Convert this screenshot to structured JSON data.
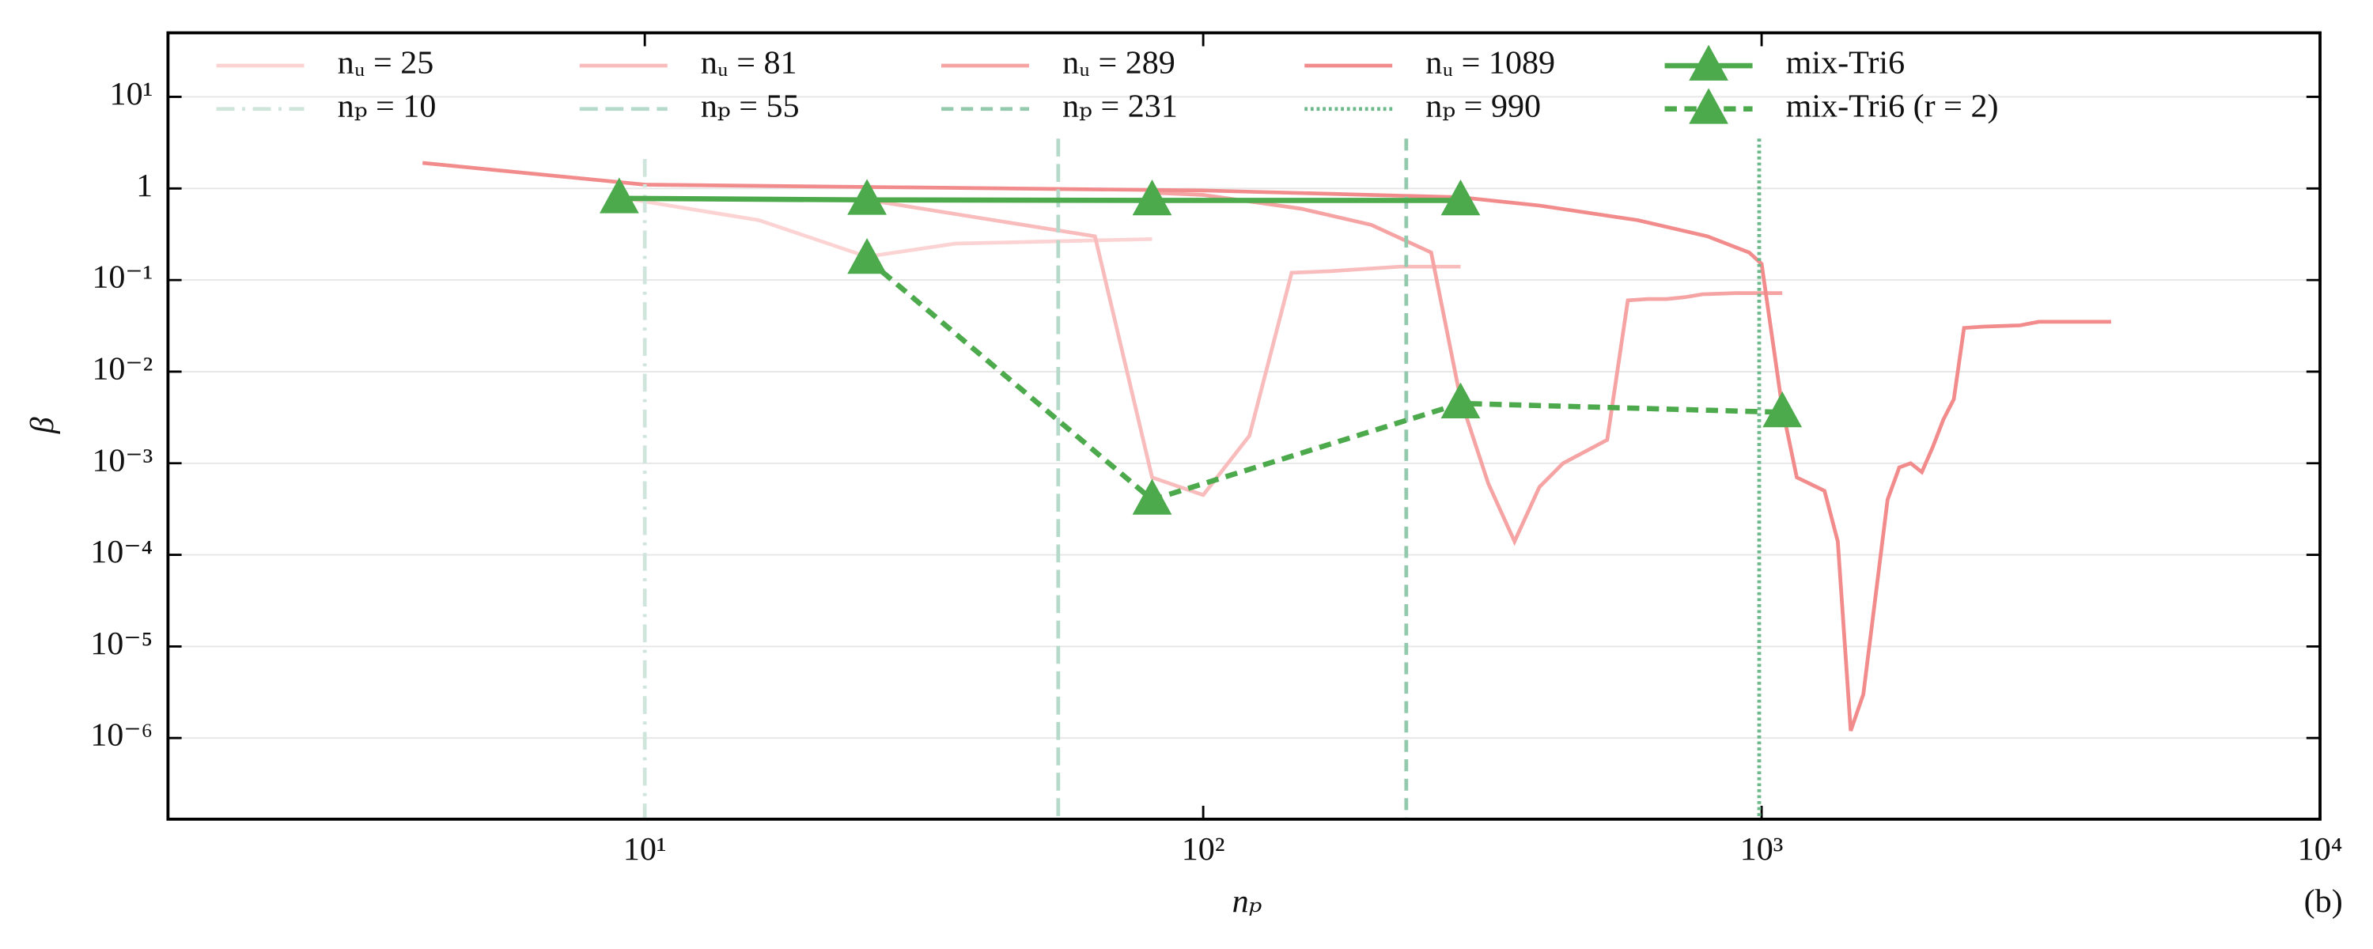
{
  "chart_data": {
    "type": "line",
    "xlabel": "nₚ",
    "ylabel": "β",
    "annotation": "(b)",
    "xscale": "log",
    "yscale": "log",
    "grid": true,
    "legend": "upper left",
    "xlim": [
      1.4,
      10000
    ],
    "ylim": [
      1.3e-07,
      50
    ],
    "xticks": [
      {
        "value": 10,
        "label": "10¹"
      },
      {
        "value": 100,
        "label": "10²"
      },
      {
        "value": 1000,
        "label": "10³"
      },
      {
        "value": 10000,
        "label": "10⁴"
      }
    ],
    "yticks": [
      {
        "value": 1e-06,
        "label": "10⁻⁶"
      },
      {
        "value": 1e-05,
        "label": "10⁻⁵"
      },
      {
        "value": 0.0001,
        "label": "10⁻⁴"
      },
      {
        "value": 0.001,
        "label": "10⁻³"
      },
      {
        "value": 0.01,
        "label": "10⁻²"
      },
      {
        "value": 0.1,
        "label": "10⁻¹"
      },
      1,
      {
        "value": 10,
        "label": "10¹"
      }
    ],
    "series": [
      {
        "name": "nᵤ = 25",
        "color": "#fcd3d3",
        "linestyle": "solid",
        "x": [
          9,
          16,
          25,
          36,
          81
        ],
        "values": [
          0.8,
          0.45,
          0.18,
          0.25,
          0.28
        ]
      },
      {
        "name": "nᵤ = 81",
        "color": "#f9bcbc",
        "linestyle": "solid",
        "x": [
          25,
          64,
          81,
          100,
          121,
          144,
          169,
          225,
          289
        ],
        "values": [
          0.75,
          0.3,
          0.0007,
          0.00045,
          0.002,
          0.12,
          0.125,
          0.14,
          0.14
        ]
      },
      {
        "name": "nᵤ = 289",
        "color": "#f5a3a3",
        "linestyle": "solid",
        "x": [
          81,
          100,
          150,
          200,
          256,
          289,
          324,
          361,
          400,
          441,
          529,
          576,
          625,
          676,
          729,
          784,
          900,
          1089
        ],
        "values": [
          0.9,
          0.85,
          0.6,
          0.4,
          0.2,
          0.005,
          0.0006,
          0.00014,
          0.00055,
          0.001,
          0.0018,
          0.06,
          0.062,
          0.062,
          0.065,
          0.07,
          0.072,
          0.072
        ]
      },
      {
        "name": "nᵤ = 1089",
        "color": "#f28c8c",
        "linestyle": "solid",
        "x": [
          4,
          10,
          100,
          200,
          289,
          400,
          600,
          800,
          950,
          1000,
          1089,
          1156,
          1296,
          1369,
          1444,
          1521,
          1681,
          1764,
          1849,
          1936,
          2025,
          2116,
          2209,
          2304,
          2500,
          2900,
          3136,
          4225
        ],
        "values": [
          1.9,
          1.1,
          0.95,
          0.85,
          0.8,
          0.65,
          0.45,
          0.3,
          0.2,
          0.15,
          0.004,
          0.0007,
          0.0005,
          0.00014,
          1.2e-06,
          3e-06,
          0.0004,
          0.0009,
          0.001,
          0.0008,
          0.0015,
          0.003,
          0.005,
          0.03,
          0.031,
          0.032,
          0.035,
          0.035
        ]
      },
      {
        "name": "nₚ = 10",
        "color": "#cfe5dc",
        "linestyle": "dashdot",
        "x": [
          10,
          10
        ],
        "values": [
          2.1,
          1.3e-07
        ]
      },
      {
        "name": "nₚ = 55",
        "color": "#b5d9ca",
        "linestyle": "longdash",
        "x": [
          55,
          55
        ],
        "values": [
          3.5,
          1.3e-07
        ]
      },
      {
        "name": "nₚ = 231",
        "color": "#93c9ac",
        "linestyle": "dashed",
        "x": [
          231,
          231
        ],
        "values": [
          3.5,
          1.3e-07
        ]
      },
      {
        "name": "nₚ = 990",
        "color": "#6db98b",
        "linestyle": "dotted",
        "x": [
          990,
          990
        ],
        "values": [
          3.5,
          1.3e-07
        ]
      },
      {
        "name": "mix-Tri6",
        "color": "#4caa4c",
        "linestyle": "solid",
        "marker": "triangle",
        "x": [
          9,
          25,
          81,
          289
        ],
        "values": [
          0.78,
          0.75,
          0.74,
          0.74
        ]
      },
      {
        "name": "mix-Tri6 (r = 2)",
        "color": "#4caa4c",
        "linestyle": "dashed",
        "marker": "triangle",
        "x": [
          25,
          81,
          289,
          1089
        ],
        "values": [
          0.17,
          0.0004,
          0.0045,
          0.0036
        ]
      }
    ]
  }
}
